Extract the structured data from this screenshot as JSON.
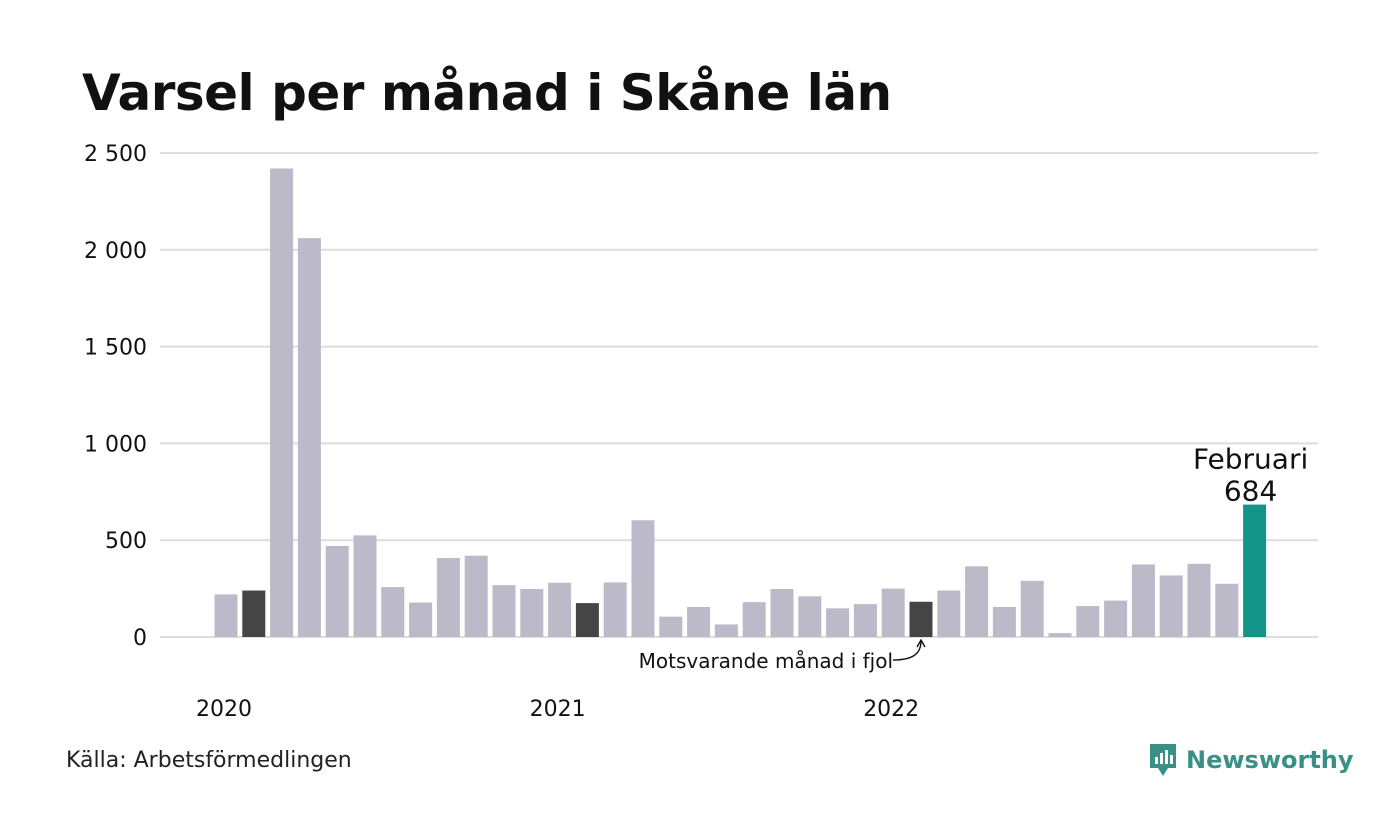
{
  "header": {
    "title": "Varsel per månad i Skåne län"
  },
  "footer": {
    "source": "Källa: Arbetsförmedlingen",
    "brand": "Newsworthy"
  },
  "colors": {
    "bar_default": "#bcbac8",
    "bar_highlight_prev_year": "#454545",
    "bar_current": "#13958a",
    "grid": "#dddddd",
    "brand": "#3a8f86"
  },
  "chart_data": {
    "type": "bar",
    "title": "Varsel per månad i Skåne län",
    "ylim": [
      0,
      2500
    ],
    "yticks": [
      {
        "value": 0,
        "label": "0"
      },
      {
        "value": 500,
        "label": "500"
      },
      {
        "value": 1000,
        "label": "1 000"
      },
      {
        "value": 1500,
        "label": "1 500"
      },
      {
        "value": 2000,
        "label": "2 000"
      },
      {
        "value": 2500,
        "label": "2 500"
      }
    ],
    "grid": true,
    "xticks": [
      {
        "index": 0,
        "label": "2020"
      },
      {
        "index": 12,
        "label": "2021"
      },
      {
        "index": 24,
        "label": "2022"
      }
    ],
    "months": [
      "2020-01",
      "2020-02",
      "2020-03",
      "2020-04",
      "2020-05",
      "2020-06",
      "2020-07",
      "2020-08",
      "2020-09",
      "2020-10",
      "2020-11",
      "2020-12",
      "2021-01",
      "2021-02",
      "2021-03",
      "2021-04",
      "2021-05",
      "2021-06",
      "2021-07",
      "2021-08",
      "2021-09",
      "2021-10",
      "2021-11",
      "2021-12",
      "2022-01",
      "2022-02",
      "2022-03",
      "2022-04",
      "2022-05",
      "2022-06",
      "2022-07",
      "2022-08",
      "2022-09",
      "2022-10",
      "2022-11",
      "2022-12",
      "2023-01",
      "2023-02"
    ],
    "values": [
      220,
      240,
      2420,
      2060,
      470,
      525,
      258,
      178,
      408,
      420,
      268,
      248,
      280,
      175,
      282,
      603,
      105,
      155,
      65,
      180,
      248,
      210,
      148,
      170,
      250,
      182,
      240,
      365,
      155,
      290,
      20,
      160,
      188,
      375,
      318,
      378,
      275,
      684
    ],
    "highlight_prev_year": [
      1,
      13,
      25
    ],
    "current_index": 37,
    "annotations": {
      "current_month_name": "Februari",
      "current_value_label": "684",
      "prev_year_note": "Motsvarande månad i fjol"
    }
  }
}
